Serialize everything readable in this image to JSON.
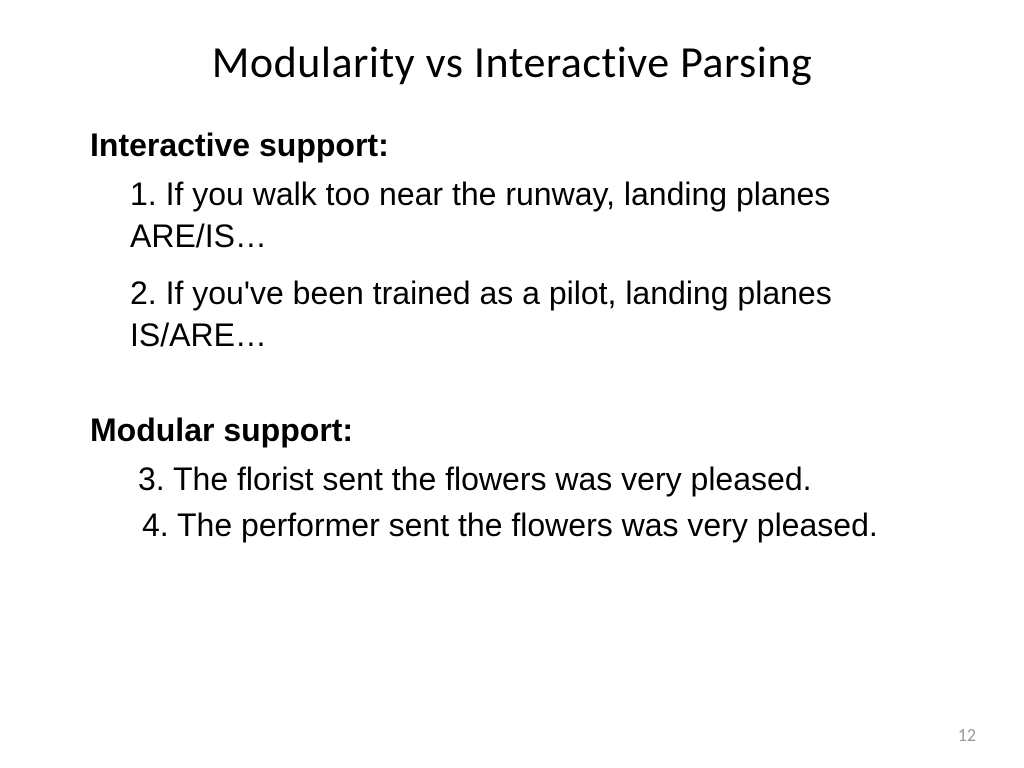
{
  "slide": {
    "title": "Modularity vs Interactive Parsing",
    "section1": {
      "header": "Interactive support:",
      "items": [
        "1. If you walk too near the runway, landing planes ARE/IS…",
        "2. If you've been trained as a pilot, landing planes IS/ARE…"
      ]
    },
    "section2": {
      "header": "Modular support:",
      "items": [
        "3. The florist sent the flowers was very pleased.",
        "4. The performer sent the flowers was very pleased."
      ]
    },
    "page_number": "12"
  },
  "styling": {
    "background_color": "#ffffff",
    "text_color": "#000000",
    "page_number_color": "#999999",
    "title_fontsize": 44,
    "body_fontsize": 32,
    "header_fontweight": 700,
    "title_font": "Calibri",
    "body_font": "Arial"
  }
}
